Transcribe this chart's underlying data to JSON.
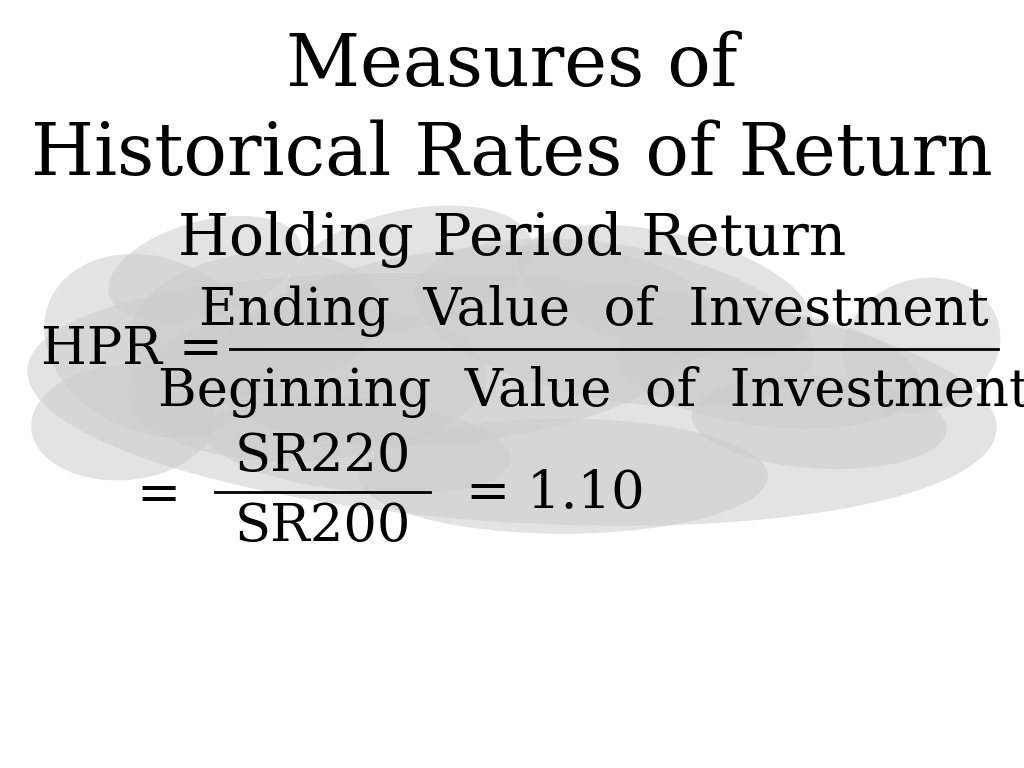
{
  "title_line1": "Measures of",
  "title_line2": "Historical Rates of Return",
  "subtitle": "Holding Period Return",
  "numerator": "Ending  Value  of  Investment",
  "denominator": "Beginning  Value  of  Investment",
  "background_color": "#ffffff",
  "text_color": "#000000",
  "blob_color": "#cccccc",
  "title_fontsize": 52,
  "subtitle_fontsize": 42,
  "formula_fontsize": 38,
  "blob_ellipses": [
    [
      5.0,
      4.8,
      9.5,
      3.2,
      -5
    ],
    [
      4.5,
      5.5,
      5.0,
      2.5,
      10
    ],
    [
      6.0,
      5.8,
      4.0,
      2.0,
      -15
    ],
    [
      3.0,
      5.0,
      3.5,
      2.0,
      5
    ],
    [
      2.5,
      5.8,
      2.5,
      1.8,
      15
    ],
    [
      7.5,
      5.2,
      3.0,
      1.5,
      -10
    ],
    [
      5.5,
      3.8,
      4.0,
      1.5,
      0
    ],
    [
      4.0,
      6.5,
      2.5,
      1.5,
      20
    ],
    [
      3.5,
      4.2,
      3.0,
      1.2,
      -8
    ],
    [
      6.5,
      6.2,
      3.0,
      1.5,
      -20
    ],
    [
      2.0,
      6.5,
      2.0,
      1.2,
      25
    ],
    [
      8.0,
      4.5,
      2.5,
      1.2,
      -5
    ],
    [
      1.5,
      5.5,
      2.0,
      2.5,
      30
    ],
    [
      1.2,
      4.5,
      1.8,
      1.5,
      10
    ],
    [
      9.0,
      5.5,
      1.5,
      1.8,
      -20
    ]
  ]
}
